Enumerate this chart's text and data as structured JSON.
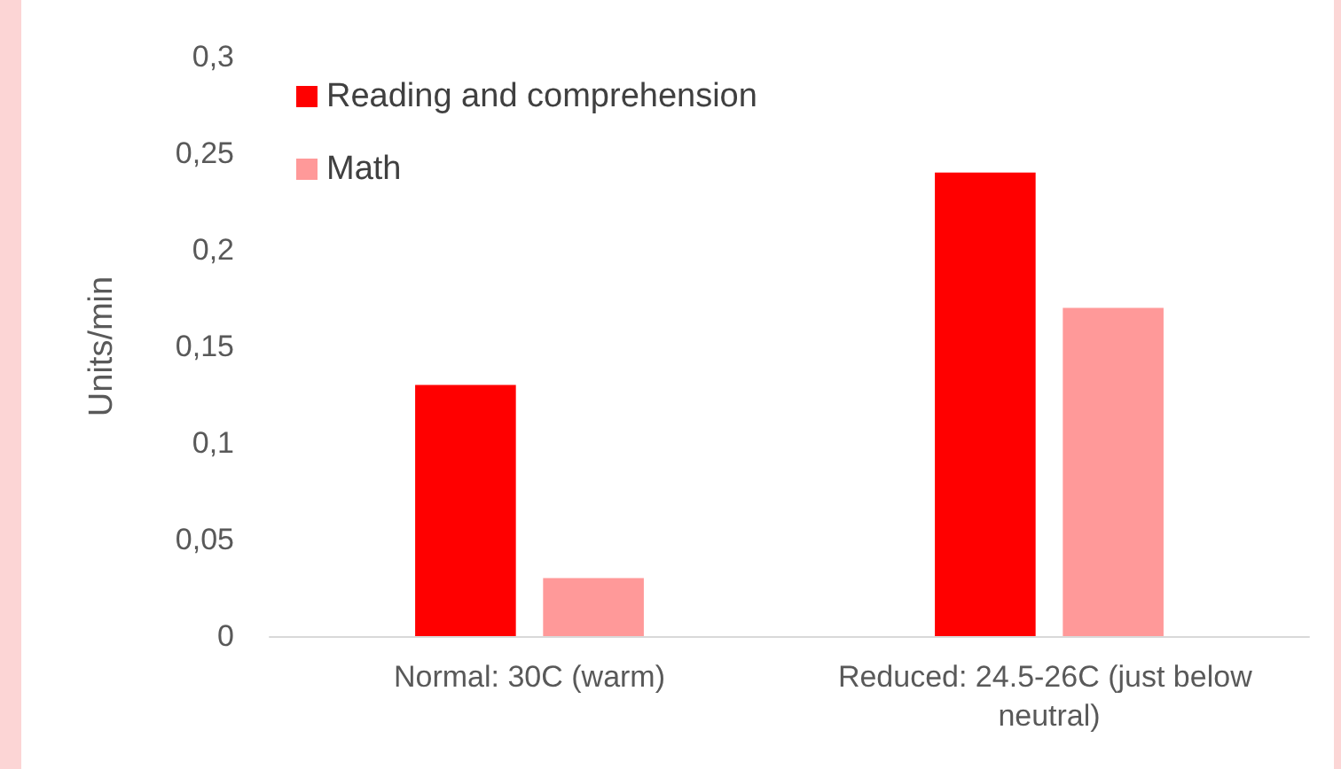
{
  "chart_data": {
    "type": "bar",
    "ylabel": "Units/min",
    "categories": [
      "Normal: 30C (warm)",
      "Reduced: 24.5-26C (just below neutral)"
    ],
    "series": [
      {
        "name": "Reading and comprehension",
        "color": "#ff0000",
        "values": [
          0.13,
          0.24
        ]
      },
      {
        "name": "Math",
        "color": "#ff9999",
        "values": [
          0.03,
          0.17
        ]
      }
    ],
    "ylim": [
      0,
      0.3
    ],
    "yticks": [
      {
        "value": 0,
        "label": "0"
      },
      {
        "value": 0.05,
        "label": "0,05"
      },
      {
        "value": 0.1,
        "label": "0,1"
      },
      {
        "value": 0.15,
        "label": "0,15"
      },
      {
        "value": 0.2,
        "label": "0,2"
      },
      {
        "value": 0.25,
        "label": "0,25"
      },
      {
        "value": 0.3,
        "label": "0,3"
      }
    ],
    "grid": false,
    "legend": "top left"
  }
}
